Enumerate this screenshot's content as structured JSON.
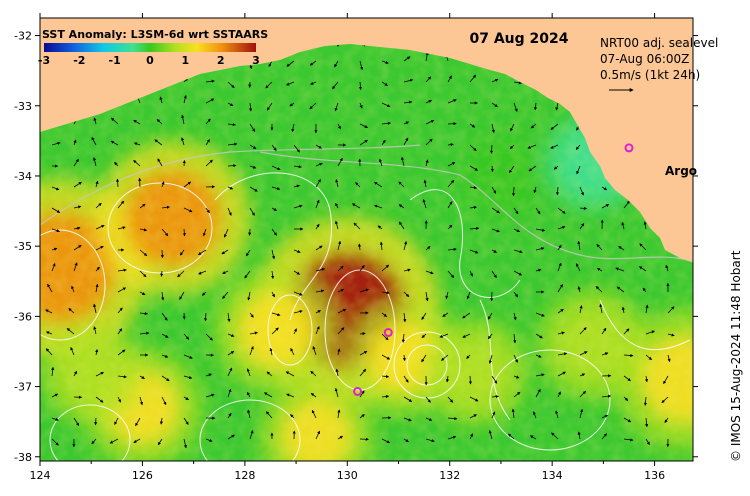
{
  "map": {
    "title": "SST Anomaly: L3SM-6d wrt SSTAARS",
    "date": "07 Aug 2024",
    "info_lines": [
      "NRT00 adj. sealevel",
      "07-Aug 06:00Z",
      "0.5m/s (1kt 24h)"
    ],
    "argo_label": "Argo",
    "credit": "© IMOS 15-Aug-2024 11:48 Hobart",
    "colors": {
      "land": "#fcc795",
      "ocean_base": "#3cc830",
      "contour": "#ffffff",
      "argo_marker": "#e020d0",
      "bathymetry": "#c0c0c0"
    },
    "colorbar": {
      "ticks": [
        "-3",
        "-2",
        "-1",
        "0",
        "1",
        "2",
        "3"
      ],
      "min": -3,
      "max": 3
    },
    "lon_ticks": [
      "124",
      "126",
      "128",
      "130",
      "132",
      "134",
      "136"
    ],
    "lat_ticks": [
      "-32",
      "-33",
      "-34",
      "-35",
      "-36",
      "-37",
      "-38"
    ],
    "lon_range": [
      124,
      136.75
    ],
    "lat_range": [
      -31.75,
      -38.06
    ],
    "argo_floats": [
      {
        "lon": 135.5,
        "lat": -33.6
      },
      {
        "lon": 130.8,
        "lat": -36.23
      },
      {
        "lon": 130.2,
        "lat": -37.07
      }
    ],
    "anomaly_features": [
      {
        "lon": 124.4,
        "lat": -35.3,
        "value": 2.4
      },
      {
        "lon": 126.6,
        "lat": -34.6,
        "value": 1.9
      },
      {
        "lon": 130.0,
        "lat": -35.9,
        "value": 2.6
      },
      {
        "lon": 128.6,
        "lat": -36.2,
        "value": 1.2
      },
      {
        "lon": 131.1,
        "lat": -36.6,
        "value": 1.0
      },
      {
        "lon": 134.8,
        "lat": -36.4,
        "value": 0.9
      },
      {
        "lon": 132.5,
        "lat": -36.8,
        "value": 0.8
      },
      {
        "lon": 136.6,
        "lat": -36.9,
        "value": 1.6
      },
      {
        "lon": 126.0,
        "lat": -37.3,
        "value": 1.1
      },
      {
        "lon": 129.4,
        "lat": -37.7,
        "value": 1.0
      },
      {
        "lon": 134.8,
        "lat": -33.8,
        "value": -0.6
      },
      {
        "lon": 133.0,
        "lat": -34.0,
        "value": 0.1
      },
      {
        "lon": 125.0,
        "lat": -36.8,
        "value": 0.7
      }
    ]
  }
}
